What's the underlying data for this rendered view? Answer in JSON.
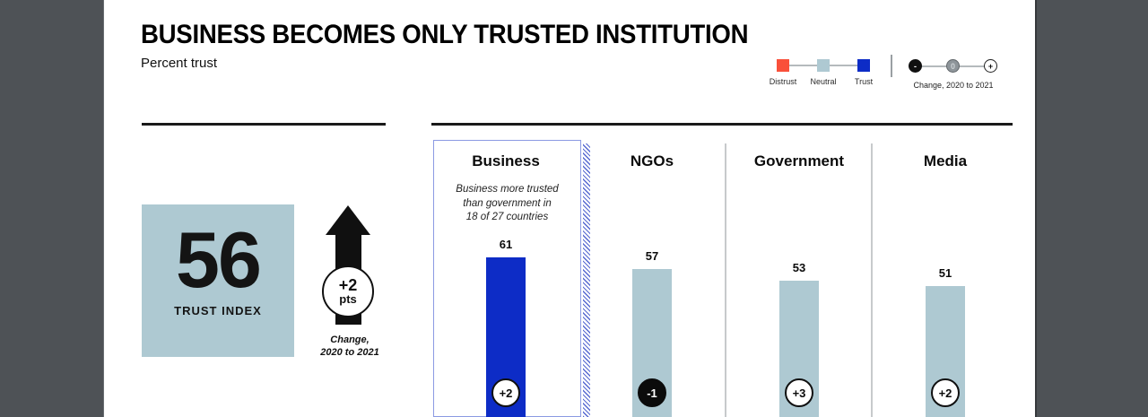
{
  "header": {
    "title": "BUSINESS BECOMES ONLY TRUSTED INSTITUTION",
    "subtitle": "Percent trust"
  },
  "legend": {
    "scale": [
      {
        "label": "Distrust",
        "color": "#f9503a"
      },
      {
        "label": "Neutral",
        "color": "#aec9d2"
      },
      {
        "label": "Trust",
        "color": "#0d2cc6"
      }
    ],
    "change": {
      "label": "Change, 2020 to 2021",
      "markers": [
        {
          "symbol": "-",
          "style": "dark",
          "name": "decrease"
        },
        {
          "symbol": "0",
          "style": "mid",
          "name": "no-change"
        },
        {
          "symbol": "+",
          "style": "light",
          "name": "increase"
        }
      ]
    }
  },
  "summary": {
    "index_value": "56",
    "index_label": "TRUST INDEX",
    "box_color": "#aec9d2",
    "change_value": "+2",
    "change_unit": "pts",
    "change_caption": "Change,\n2020 to 2021"
  },
  "chart_data": {
    "type": "bar",
    "title": "BUSINESS BECOMES ONLY TRUSTED INSTITUTION",
    "ylabel": "Percent trust",
    "categories": [
      "Business",
      "NGOs",
      "Government",
      "Media"
    ],
    "values": [
      61,
      57,
      53,
      51
    ],
    "changes": [
      "+2",
      "-1",
      "+3",
      "+2"
    ],
    "legend_position": "top-right",
    "grid": false,
    "institutions": [
      {
        "label": "Business",
        "value": 61,
        "change": "+2",
        "change_style": "light",
        "bar_color": "#0d2cc6",
        "note": "Business more trusted\nthan government in\n18 of 27 countries",
        "highlighted": true
      },
      {
        "label": "NGOs",
        "value": 57,
        "change": "-1",
        "change_style": "dark",
        "bar_color": "#aec9d2"
      },
      {
        "label": "Government",
        "value": 53,
        "change": "+3",
        "change_style": "light",
        "bar_color": "#aec9d2"
      },
      {
        "label": "Media",
        "value": 51,
        "change": "+2",
        "change_style": "light",
        "bar_color": "#aec9d2"
      }
    ]
  }
}
